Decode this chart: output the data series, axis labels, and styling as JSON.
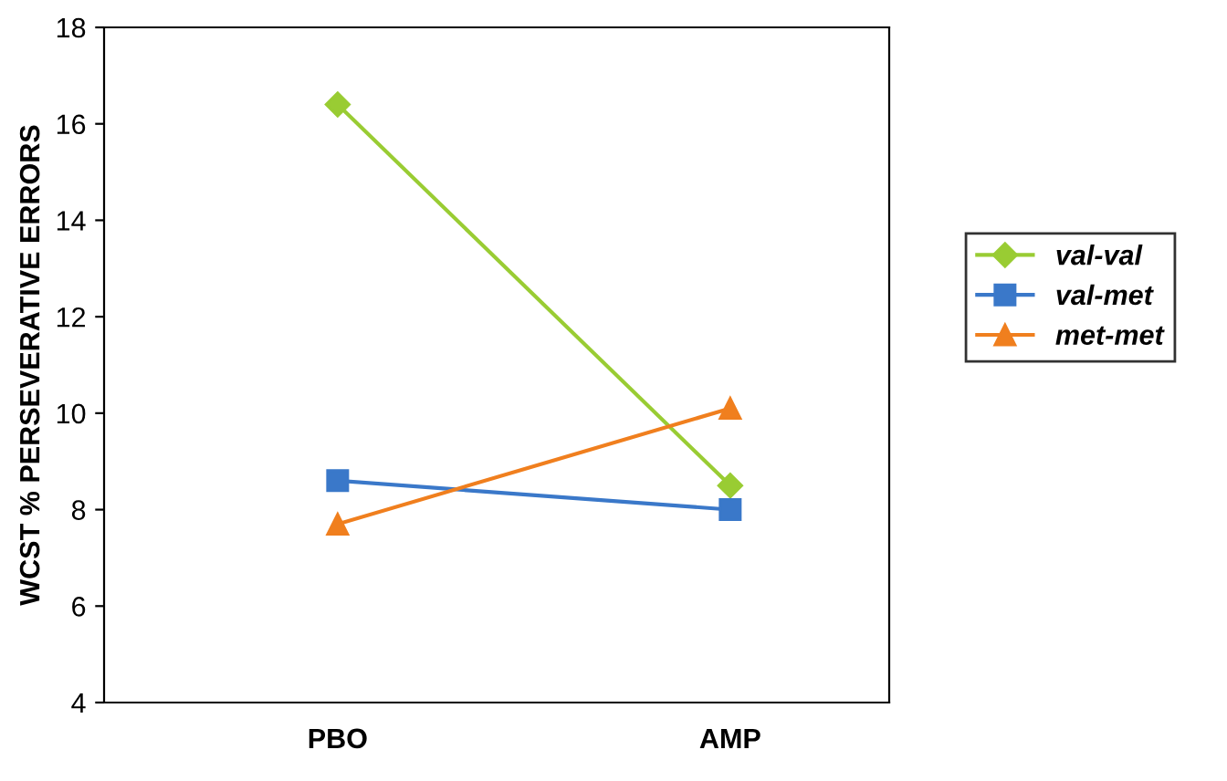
{
  "chart_data": {
    "type": "line",
    "ylabel": "WCST % PERSEVERATIVE ERRORS",
    "categories": [
      "PBO",
      "AMP"
    ],
    "series": [
      {
        "name": "val-val",
        "color": "#99cc33",
        "marker": "diamond",
        "values": [
          16.4,
          8.5
        ]
      },
      {
        "name": "val-met",
        "color": "#3a78c9",
        "marker": "square",
        "values": [
          8.6,
          8.0
        ]
      },
      {
        "name": "met-met",
        "color": "#f07f1e",
        "marker": "triangle",
        "values": [
          7.7,
          10.1
        ]
      }
    ],
    "ylim": [
      4,
      18
    ],
    "yticks": [
      4,
      6,
      8,
      10,
      12,
      14,
      16,
      18
    ],
    "grid": false,
    "legend": "right",
    "line_style": "solid"
  }
}
